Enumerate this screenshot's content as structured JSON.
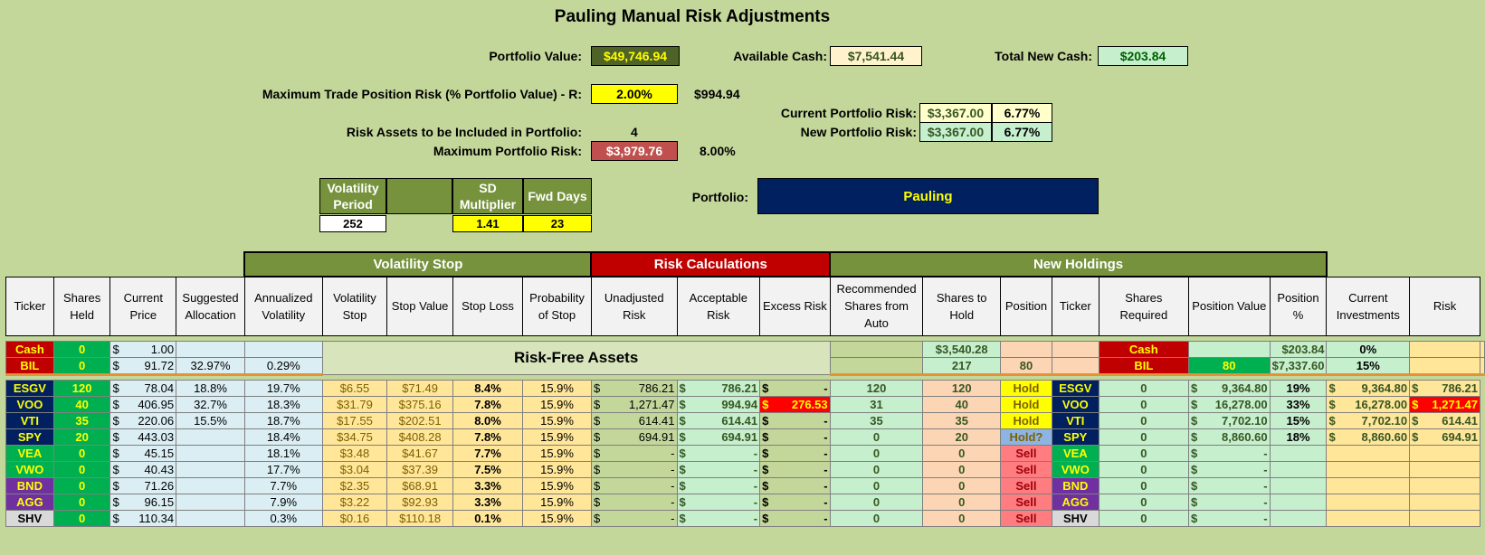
{
  "title": "Pauling Manual Risk Adjustments",
  "summary": {
    "portfolio_value_label": "Portfolio Value:",
    "portfolio_value": "$49,746.94",
    "available_cash_label": "Available Cash:",
    "available_cash": "$7,541.44",
    "total_new_cash_label": "Total New Cash:",
    "total_new_cash": "$203.84",
    "max_trade_risk_label": "Maximum Trade Position Risk (% Portfolio Value) - R:",
    "max_trade_risk_pct": "2.00%",
    "max_trade_risk_amt": "$994.94",
    "risk_assets_label": "Risk Assets to be Included in Portfolio:",
    "risk_assets_count": "4",
    "max_portfolio_risk_label": "Maximum Portfolio Risk:",
    "max_portfolio_risk": "$3,979.76",
    "max_portfolio_risk_pct": "8.00%",
    "current_risk_label": "Current Portfolio Risk:",
    "current_risk": "$3,367.00",
    "current_risk_pct": "6.77%",
    "new_risk_label": "New Portfolio Risk:",
    "new_risk": "$3,367.00",
    "new_risk_pct": "6.77%",
    "portfolio_label": "Portfolio:",
    "portfolio_name": "Pauling"
  },
  "params": {
    "vol_period_label": "Volatility Period",
    "vol_period": "252",
    "sd_mult_label": "SD Multiplier",
    "sd_mult": "1.41",
    "fwd_days_label": "Fwd Days",
    "fwd_days": "23"
  },
  "sections": {
    "volatility_stop": "Volatility Stop",
    "risk_calculations": "Risk Calculations",
    "new_holdings": "New Holdings",
    "risk_free": "Risk-Free Assets"
  },
  "headers": [
    "Ticker",
    "Shares Held",
    "Current Price",
    "Suggested Allocation",
    "Annualized Volatility",
    "Volatility Stop",
    "Stop Value",
    "Stop Loss",
    "Probability of Stop",
    "Unadjusted Risk",
    "Acceptable Risk",
    "Excess Risk",
    "Recommended Shares from Auto",
    "Shares to Hold",
    "Position",
    "Ticker",
    "Shares Required",
    "Position Value",
    "Position %",
    "Current Investments",
    "Risk"
  ],
  "riskfree_rows": [
    {
      "ticker": "Cash",
      "tcolor": "#c00000",
      "tfg": "#ffff00",
      "shares": "0",
      "price": "1.00",
      "alloc": "",
      "vol": "",
      "rec": "$3,540.28",
      "hold": "",
      "pos": "",
      "req": "",
      "pval": "$203.84",
      "ppct": "0%"
    },
    {
      "ticker": "BIL",
      "tcolor": "#c00000",
      "tfg": "#ffff00",
      "shares": "0",
      "price": "91.72",
      "alloc": "32.97%",
      "vol": "0.29%",
      "rec": "217",
      "hold": "80",
      "pos": "",
      "req": "80",
      "pval": "7,337.60",
      "ppct": "15%"
    }
  ],
  "rows": [
    {
      "ticker": "ESGV",
      "tcolor": "#002060",
      "tfg": "#ffff00",
      "shares": "120",
      "price": "78.04",
      "alloc": "18.8%",
      "vol": "19.7%",
      "vstop": "$6.55",
      "sval": "$71.49",
      "sloss": "8.4%",
      "prob": "15.9%",
      "unadj": "786.21",
      "accept": "786.21",
      "excess": "-",
      "excess_red": false,
      "rec": "120",
      "hold": "120",
      "pos": "Hold",
      "poscolor": "#ffff00",
      "req": "0",
      "pval": "9,364.80",
      "ppct": "19%",
      "curinv": "9,364.80",
      "risk": "786.21",
      "risk_red": false
    },
    {
      "ticker": "VOO",
      "tcolor": "#002060",
      "tfg": "#ffff00",
      "shares": "40",
      "price": "406.95",
      "alloc": "32.7%",
      "vol": "18.3%",
      "vstop": "$31.79",
      "sval": "$375.16",
      "sloss": "7.8%",
      "prob": "15.9%",
      "unadj": "1,271.47",
      "accept": "994.94",
      "excess": "276.53",
      "excess_red": true,
      "rec": "31",
      "hold": "40",
      "pos": "Hold",
      "poscolor": "#ffff00",
      "req": "0",
      "pval": "16,278.00",
      "ppct": "33%",
      "curinv": "16,278.00",
      "risk": "1,271.47",
      "risk_red": true
    },
    {
      "ticker": "VTI",
      "tcolor": "#002060",
      "tfg": "#ffff00",
      "shares": "35",
      "price": "220.06",
      "alloc": "15.5%",
      "vol": "18.7%",
      "vstop": "$17.55",
      "sval": "$202.51",
      "sloss": "8.0%",
      "prob": "15.9%",
      "unadj": "614.41",
      "accept": "614.41",
      "excess": "-",
      "excess_red": false,
      "rec": "35",
      "hold": "35",
      "pos": "Hold",
      "poscolor": "#ffff00",
      "req": "0",
      "pval": "7,702.10",
      "ppct": "15%",
      "curinv": "7,702.10",
      "risk": "614.41",
      "risk_red": false
    },
    {
      "ticker": "SPY",
      "tcolor": "#002060",
      "tfg": "#ffff00",
      "shares": "20",
      "price": "443.03",
      "alloc": "",
      "vol": "18.4%",
      "vstop": "$34.75",
      "sval": "$408.28",
      "sloss": "7.8%",
      "prob": "15.9%",
      "unadj": "694.91",
      "accept": "694.91",
      "excess": "-",
      "excess_red": false,
      "rec": "0",
      "hold": "20",
      "pos": "Hold?",
      "poscolor": "#8eb4e3",
      "req": "0",
      "pval": "8,860.60",
      "ppct": "18%",
      "curinv": "8,860.60",
      "risk": "694.91",
      "risk_red": false
    },
    {
      "ticker": "VEA",
      "tcolor": "#00b050",
      "tfg": "#ffff00",
      "shares": "0",
      "price": "45.15",
      "alloc": "",
      "vol": "18.1%",
      "vstop": "$3.48",
      "sval": "$41.67",
      "sloss": "7.7%",
      "prob": "15.9%",
      "unadj": "-",
      "accept": "-",
      "excess": "-",
      "excess_red": false,
      "rec": "0",
      "hold": "0",
      "pos": "Sell",
      "poscolor": "#ff7c80",
      "req": "0",
      "pval": "-",
      "ppct": "",
      "curinv": "",
      "risk": "",
      "risk_red": false
    },
    {
      "ticker": "VWO",
      "tcolor": "#00b050",
      "tfg": "#ffff00",
      "shares": "0",
      "price": "40.43",
      "alloc": "",
      "vol": "17.7%",
      "vstop": "$3.04",
      "sval": "$37.39",
      "sloss": "7.5%",
      "prob": "15.9%",
      "unadj": "-",
      "accept": "-",
      "excess": "-",
      "excess_red": false,
      "rec": "0",
      "hold": "0",
      "pos": "Sell",
      "poscolor": "#ff7c80",
      "req": "0",
      "pval": "-",
      "ppct": "",
      "curinv": "",
      "risk": "",
      "risk_red": false
    },
    {
      "ticker": "BND",
      "tcolor": "#7030a0",
      "tfg": "#ffff00",
      "shares": "0",
      "price": "71.26",
      "alloc": "",
      "vol": "7.7%",
      "vstop": "$2.35",
      "sval": "$68.91",
      "sloss": "3.3%",
      "prob": "15.9%",
      "unadj": "-",
      "accept": "-",
      "excess": "-",
      "excess_red": false,
      "rec": "0",
      "hold": "0",
      "pos": "Sell",
      "poscolor": "#ff7c80",
      "req": "0",
      "pval": "-",
      "ppct": "",
      "curinv": "",
      "risk": "",
      "risk_red": false
    },
    {
      "ticker": "AGG",
      "tcolor": "#7030a0",
      "tfg": "#ffff00",
      "shares": "0",
      "price": "96.15",
      "alloc": "",
      "vol": "7.9%",
      "vstop": "$3.22",
      "sval": "$92.93",
      "sloss": "3.3%",
      "prob": "15.9%",
      "unadj": "-",
      "accept": "-",
      "excess": "-",
      "excess_red": false,
      "rec": "0",
      "hold": "0",
      "pos": "Sell",
      "poscolor": "#ff7c80",
      "req": "0",
      "pval": "-",
      "ppct": "",
      "curinv": "",
      "risk": "",
      "risk_red": false
    },
    {
      "ticker": "SHV",
      "tcolor": "#d9d9d9",
      "tfg": "#000000",
      "shares": "0",
      "price": "110.34",
      "alloc": "",
      "vol": "0.3%",
      "vstop": "$0.16",
      "sval": "$110.18",
      "sloss": "0.1%",
      "prob": "15.9%",
      "unadj": "-",
      "accept": "-",
      "excess": "-",
      "excess_red": false,
      "rec": "0",
      "hold": "0",
      "pos": "Sell",
      "poscolor": "#ff7c80",
      "req": "0",
      "pval": "-",
      "ppct": "",
      "curinv": "",
      "risk": "",
      "risk_red": false
    }
  ]
}
